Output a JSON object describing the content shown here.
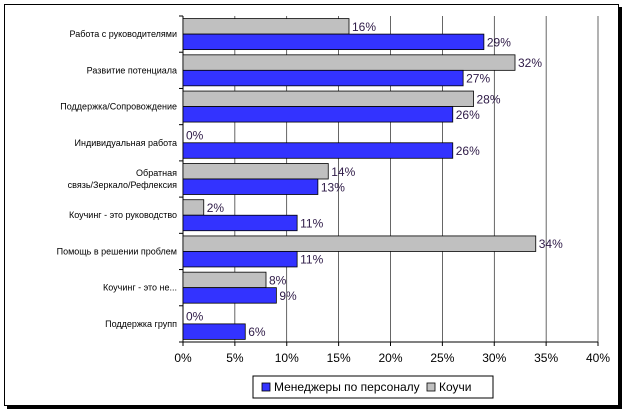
{
  "chart_data": {
    "type": "bar",
    "orientation": "horizontal",
    "title": "",
    "xlabel": "",
    "ylabel": "",
    "categories": [
      [
        "Работа с руководителями"
      ],
      [
        "Развитие потенциала"
      ],
      [
        "Поддержка/Сопровождение"
      ],
      [
        "Индивидуальная работа"
      ],
      [
        "Обратная",
        "связь/Зеркало/Рефлексия"
      ],
      [
        "Коучинг - это руководство"
      ],
      [
        "Помощь в решении проблем"
      ],
      [
        "Коучинг - это не..."
      ],
      [
        "Поддержка групп"
      ]
    ],
    "series": [
      {
        "name": "Менеджеры по персоналу",
        "values": [
          29,
          27,
          26,
          26,
          13,
          11,
          11,
          9,
          6
        ],
        "color": "#3333ff"
      },
      {
        "name": "Коучи",
        "values": [
          16,
          32,
          28,
          0,
          14,
          2,
          34,
          8,
          0
        ],
        "color": "#c0c0c0"
      }
    ],
    "xlim": [
      0,
      40
    ],
    "xticks": [
      0,
      5,
      10,
      15,
      20,
      25,
      30,
      35,
      40
    ],
    "value_suffix": "%",
    "grid": "vertical",
    "legend": "bottom"
  }
}
